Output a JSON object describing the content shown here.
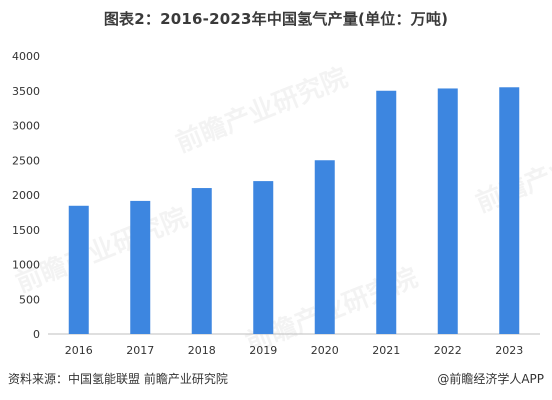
{
  "chart_data": {
    "type": "bar",
    "title": "图表2：2016-2023年中国氢气产量(单位：万吨)",
    "categories": [
      "2016",
      "2017",
      "2018",
      "2019",
      "2020",
      "2021",
      "2022",
      "2023"
    ],
    "values": [
      1845,
      1915,
      2100,
      2200,
      2500,
      3500,
      3533,
      3550
    ],
    "ylim": [
      0,
      4000
    ],
    "yticks": [
      0,
      500,
      1000,
      1500,
      2000,
      2500,
      3000,
      3500,
      4000
    ],
    "xlabel": "",
    "ylabel": "",
    "grid": false,
    "legend": "none",
    "bar_color": "#3d86e0"
  },
  "footer": {
    "source": "资料来源：中国氢能联盟 前瞻产业研究院",
    "credit": "@前瞻经济学人APP"
  },
  "watermark": {
    "text": "前瞻产业研究院"
  }
}
